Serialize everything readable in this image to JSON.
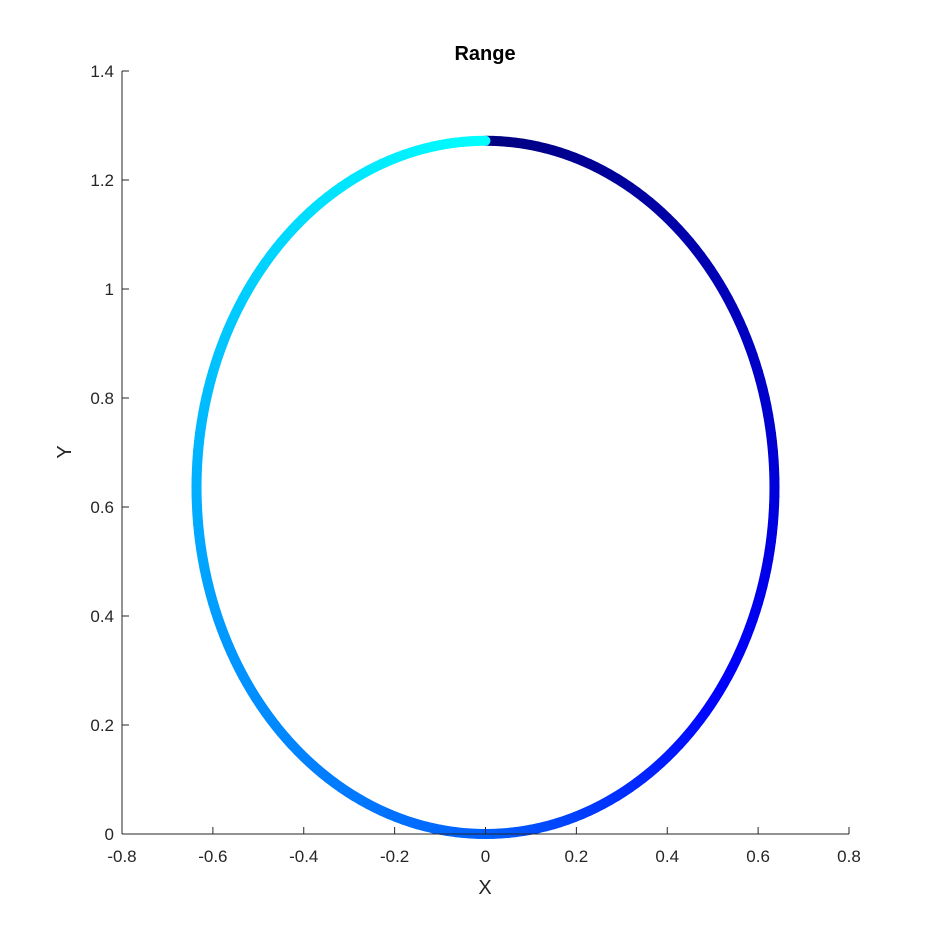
{
  "chart_data": {
    "type": "line",
    "title": "Range",
    "xlabel": "X",
    "ylabel": "Y",
    "xlim": [
      -0.8,
      0.8
    ],
    "ylim": [
      0,
      1.4
    ],
    "xticks": [
      -0.8,
      -0.6,
      -0.4,
      -0.2,
      0,
      0.2,
      0.4,
      0.6,
      0.8
    ],
    "yticks": [
      0,
      0.2,
      0.4,
      0.6,
      0.8,
      1,
      1.2,
      1.4
    ],
    "xtick_labels": [
      "-0.8",
      "-0.6",
      "-0.4",
      "-0.2",
      "0",
      "0.2",
      "0.4",
      "0.6",
      "0.8"
    ],
    "ytick_labels": [
      "0",
      "0.2",
      "0.4",
      "0.6",
      "0.8",
      "1",
      "1.2",
      "1.4"
    ],
    "grid": false,
    "legend": "none",
    "series": [
      {
        "curve": "closed ellipse traversed clockwise from top",
        "center": [
          0,
          0.636
        ],
        "semi_axis_x": 0.636,
        "semi_axis_y": 0.636,
        "points": [
          [
            0.0,
            1.272
          ],
          [
            0.318,
            1.187
          ],
          [
            0.551,
            0.954
          ],
          [
            0.636,
            0.636
          ],
          [
            0.551,
            0.318
          ],
          [
            0.318,
            0.085
          ],
          [
            0.0,
            0.0
          ],
          [
            -0.318,
            0.085
          ],
          [
            -0.551,
            0.318
          ],
          [
            -0.636,
            0.636
          ],
          [
            -0.551,
            0.954
          ],
          [
            -0.318,
            1.187
          ],
          [
            0.0,
            1.272
          ]
        ],
        "color_start": "#000080",
        "color_mid": "#0000ff",
        "color_bottom": "#0060ff",
        "color_end": "#00ffff"
      }
    ]
  }
}
